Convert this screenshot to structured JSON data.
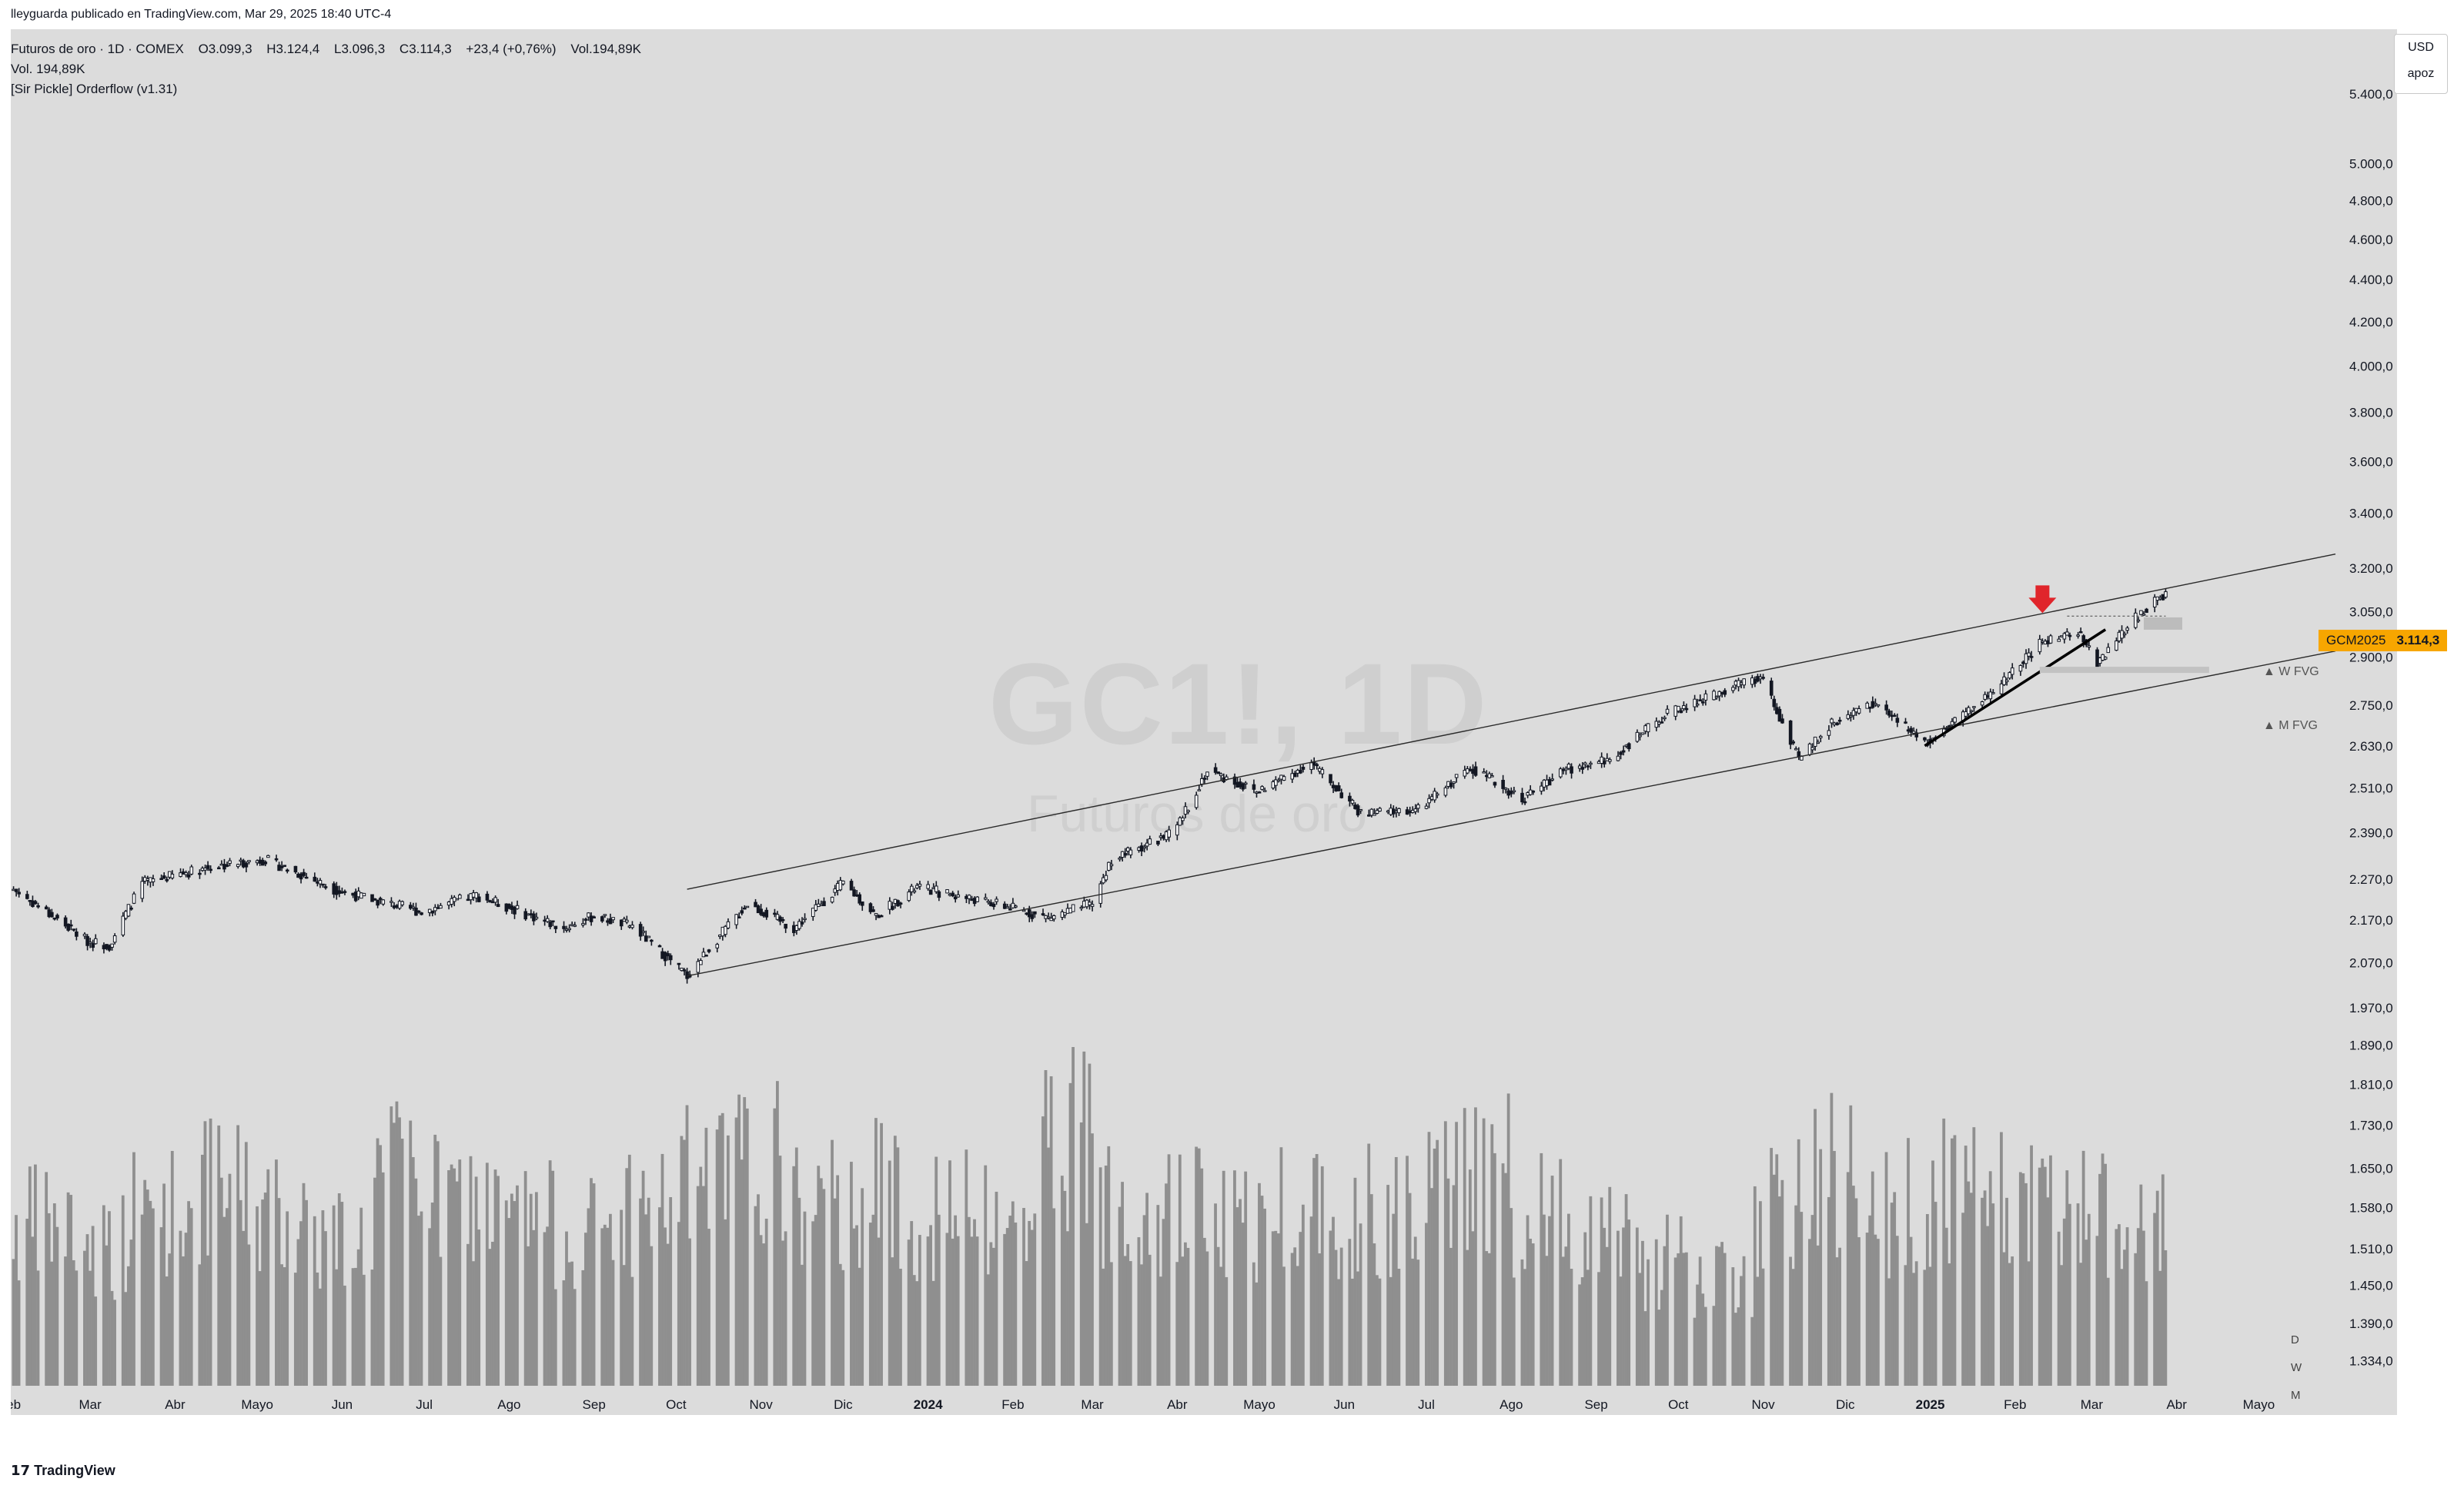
{
  "header": {
    "published_by": "lleyguarda publicado en TradingView.com, Mar 29, 2025 18:40 UTC-4"
  },
  "legend": {
    "symbol_line": "Futuros de oro · 1D · COMEX",
    "open": "O3.099,3",
    "high": "H3.124,4",
    "low": "L3.096,3",
    "close": "C3.114,3",
    "change": "+23,4 (+0,76%)",
    "volume": "Vol.194,89K",
    "vol_line": "Vol.  194,89K",
    "indicator_line": "[Sir Pickle] Orderflow (v1.31)"
  },
  "watermark": {
    "symbol": "GC1!, 1D",
    "description": "Futuros de oro"
  },
  "currency": {
    "label": "USD",
    "sub": "apoz"
  },
  "price_tag": {
    "ticker": "GCM2025",
    "price": "3.114,3"
  },
  "annotations": {
    "w_fvg": "▲ W FVG",
    "m_fvg": "▲ M FVG",
    "dwm": [
      "D",
      "W",
      "M"
    ]
  },
  "footer": {
    "brand": "TradingView"
  },
  "colors": {
    "background": "#dcdcdc",
    "candle": "#131722",
    "volume_bar": "#8f8f8f",
    "price_tag": "#f7a600",
    "arrow": "#e0252b",
    "trendline": "#2a2a2a"
  },
  "chart_data": {
    "type": "candlestick",
    "timeframe": "1D",
    "y_scale": "log",
    "ylim": [
      1300,
      5800
    ],
    "y_tick_labels": [
      "5.400,0",
      "5.000,0",
      "4.800,0",
      "4.600,0",
      "4.400,0",
      "4.200,0",
      "4.000,0",
      "3.800,0",
      "3.600,0",
      "3.400,0",
      "3.200,0",
      "3.050,0",
      "2.900,0",
      "2.750,0",
      "2.630,0",
      "2.510,0",
      "2.390,0",
      "2.270,0",
      "2.170,0",
      "2.070,0",
      "1.970,0",
      "1.890,0",
      "1.810,0",
      "1.730,0",
      "1.650,0",
      "1.580,0",
      "1.510,0",
      "1.450,0",
      "1.390,0",
      "1.334,0"
    ],
    "y_tick_values": [
      5400,
      5000,
      4800,
      4600,
      4400,
      4200,
      4000,
      3800,
      3600,
      3400,
      3200,
      3050,
      2900,
      2750,
      2630,
      2510,
      2390,
      2270,
      2170,
      2070,
      1970,
      1890,
      1810,
      1730,
      1650,
      1580,
      1510,
      1450,
      1390,
      1334
    ],
    "x_tick_labels": [
      "eb",
      "Mar",
      "Abr",
      "Mayo",
      "Jun",
      "Jul",
      "Ago",
      "Sep",
      "Oct",
      "Nov",
      "Dic",
      "2024",
      "Feb",
      "Mar",
      "Abr",
      "Mayo",
      "Jun",
      "Jul",
      "Ago",
      "Sep",
      "Oct",
      "Nov",
      "Dic",
      "2025",
      "Feb",
      "Mar",
      "Abr",
      "Mayo"
    ],
    "x_tick_dates": [
      "2023-02-01",
      "2023-03-01",
      "2023-04-01",
      "2023-05-01",
      "2023-06-01",
      "2023-07-01",
      "2023-08-01",
      "2023-09-01",
      "2023-10-01",
      "2023-11-01",
      "2023-12-01",
      "2024-01-01",
      "2024-02-01",
      "2024-03-01",
      "2024-04-01",
      "2024-05-01",
      "2024-06-01",
      "2024-07-01",
      "2024-08-01",
      "2024-09-01",
      "2024-10-01",
      "2024-11-01",
      "2024-12-01",
      "2025-01-01",
      "2025-02-01",
      "2025-03-01",
      "2025-04-01",
      "2025-05-01"
    ],
    "x_range": [
      "2023-01-31",
      "2025-05-29"
    ],
    "price_path": [
      [
        "2023-02-01",
        2245
      ],
      [
        "2023-02-28",
        2120
      ],
      [
        "2023-03-08",
        2110
      ],
      [
        "2023-03-20",
        2260
      ],
      [
        "2023-04-13",
        2300
      ],
      [
        "2023-05-04",
        2320
      ],
      [
        "2023-05-31",
        2240
      ],
      [
        "2023-06-30",
        2190
      ],
      [
        "2023-07-20",
        2230
      ],
      [
        "2023-08-21",
        2150
      ],
      [
        "2023-09-01",
        2180
      ],
      [
        "2023-09-15",
        2155
      ],
      [
        "2023-10-05",
        2040
      ],
      [
        "2023-10-27",
        2210
      ],
      [
        "2023-11-13",
        2150
      ],
      [
        "2023-12-01",
        2260
      ],
      [
        "2023-12-13",
        2180
      ],
      [
        "2023-12-28",
        2250
      ],
      [
        "2024-01-31",
        2200
      ],
      [
        "2024-02-14",
        2175
      ],
      [
        "2024-03-01",
        2210
      ],
      [
        "2024-03-08",
        2320
      ],
      [
        "2024-03-31",
        2390
      ],
      [
        "2024-04-12",
        2560
      ],
      [
        "2024-04-30",
        2500
      ],
      [
        "2024-05-20",
        2580
      ],
      [
        "2024-06-07",
        2440
      ],
      [
        "2024-06-28",
        2450
      ],
      [
        "2024-07-17",
        2570
      ],
      [
        "2024-08-05",
        2480
      ],
      [
        "2024-08-20",
        2560
      ],
      [
        "2024-09-06",
        2590
      ],
      [
        "2024-09-26",
        2720
      ],
      [
        "2024-10-31",
        2840
      ],
      [
        "2024-11-14",
        2590
      ],
      [
        "2024-11-25",
        2690
      ],
      [
        "2024-12-11",
        2760
      ],
      [
        "2024-12-30",
        2640
      ],
      [
        "2025-01-24",
        2790
      ],
      [
        "2025-02-11",
        2950
      ],
      [
        "2025-02-24",
        2980
      ],
      [
        "2025-03-03",
        2880
      ],
      [
        "2025-03-17",
        3030
      ],
      [
        "2025-03-28",
        3114.3
      ]
    ],
    "last": {
      "open": 3099.3,
      "high": 3124.4,
      "low": 3096.3,
      "close": 3114.3
    },
    "volume": {
      "last_value": "194,89K",
      "relative_levels": [
        0.45,
        0.4,
        0.5,
        0.55,
        0.48,
        0.42,
        0.6,
        0.52,
        0.47,
        0.44,
        0.5,
        0.58,
        0.62,
        0.5,
        0.55,
        0.48,
        0.45,
        0.7,
        0.55,
        0.5,
        0.46,
        0.52,
        0.5,
        0.55,
        0.6,
        0.48,
        0.46,
        0.35,
        0.3,
        0.5,
        0.6,
        0.5,
        0.55,
        0.52,
        0.5,
        0.45
      ]
    },
    "channel_lines": [
      {
        "from": [
          "2023-10-05",
          2040
        ],
        "to": [
          "2025-05-29",
          2920
        ]
      },
      {
        "from": [
          "2023-10-05",
          2245
        ],
        "to": [
          "2025-05-29",
          3250
        ]
      }
    ],
    "extra_trendline": {
      "from": [
        "2024-12-30",
        2630
      ],
      "to": [
        "2025-03-06",
        2990
      ]
    },
    "w_fvg_price": 3010,
    "m_fvg_price": 2860,
    "arrow_at": [
      "2025-02-11",
      3050
    ]
  }
}
